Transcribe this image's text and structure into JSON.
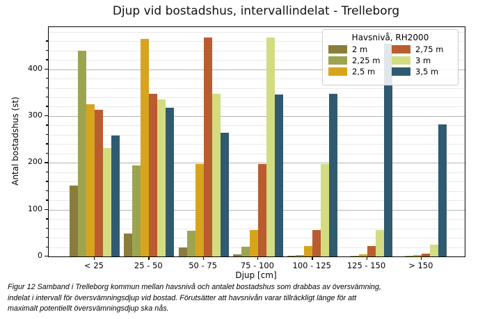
{
  "title": "Djup vid bostadshus, intervallindelat - Trelleborg",
  "chart_data": {
    "type": "bar",
    "title": "Djup vid bostadshus, intervallindelat - Trelleborg",
    "xlabel": "Djup [cm]",
    "ylabel": "Antal bostadshus (st)",
    "categories": [
      "< 25",
      "25 - 50",
      "50 - 75",
      "75 - 100",
      "100 - 125",
      "125 - 150",
      "> 150"
    ],
    "ylim": [
      0,
      490
    ],
    "yticks": [
      0,
      100,
      200,
      300,
      400
    ],
    "minor_grid_step": 20,
    "grid": true,
    "legend_title": "Havsnivå, RH2000",
    "legend_position": "upper right",
    "series": [
      {
        "name": "2 m",
        "color": "#8a7d3b",
        "values": [
          152,
          49,
          20,
          4,
          1,
          0,
          0
        ]
      },
      {
        "name": "2,25 m",
        "color": "#9da44f",
        "values": [
          440,
          194,
          55,
          21,
          3,
          2,
          1
        ]
      },
      {
        "name": "2,5 m",
        "color": "#d7a41e",
        "values": [
          325,
          465,
          198,
          57,
          23,
          4,
          3
        ]
      },
      {
        "name": "2,75 m",
        "color": "#b95c2f",
        "values": [
          314,
          348,
          468,
          198,
          57,
          23,
          6
        ]
      },
      {
        "name": "3 m",
        "color": "#d3dc81",
        "values": [
          232,
          335,
          348,
          468,
          198,
          57,
          26
        ]
      },
      {
        "name": "3,5 m",
        "color": "#2f5a70",
        "values": [
          259,
          318,
          265,
          346,
          348,
          455,
          282
        ]
      }
    ]
  },
  "caption": {
    "lines": [
      "Figur 12 Samband i Trelleborg kommun mellan havsnivå och antalet bostadshus som drabbas av översvämning,",
      "indelat i intervall för översvämningsdjup vid bostad. Förutsätter att havsnivån varar tillräckligt länge för att",
      "maximalt potentiellt översvämningsdjup ska nås."
    ]
  }
}
